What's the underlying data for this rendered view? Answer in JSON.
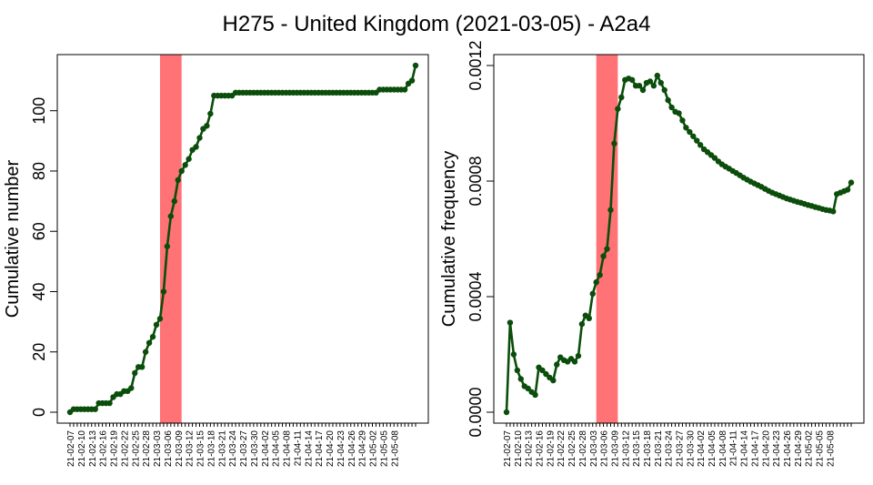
{
  "title": "H275 - United Kingdom (2021-03-05) - A2a4",
  "colors": {
    "line": "#0b4d0b",
    "highlight": "#ff7276",
    "axis": "#000000"
  },
  "chart_data": [
    {
      "type": "line",
      "title": "",
      "xlabel": "",
      "ylabel": "Cumulative number",
      "ylim": [
        0,
        115
      ],
      "yticks": [
        0,
        20,
        40,
        60,
        80,
        100
      ],
      "ytick_labels": [
        "0",
        "20",
        "40",
        "60",
        "80",
        "100"
      ],
      "highlight_range": [
        25,
        31
      ],
      "x_tick_labels": [
        "21-02-07",
        "21-02-10",
        "21-02-13",
        "21-02-16",
        "21-02-19",
        "21-02-22",
        "21-02-25",
        "21-02-28",
        "21-03-03",
        "21-03-06",
        "21-03-09",
        "21-03-12",
        "21-03-15",
        "21-03-18",
        "21-03-21",
        "21-03-24",
        "21-03-27",
        "21-03-30",
        "21-04-02",
        "21-04-05",
        "21-04-08",
        "21-04-11",
        "21-04-14",
        "21-04-17",
        "21-04-20",
        "21-04-23",
        "21-04-26",
        "21-04-29",
        "21-05-02",
        "21-05-05",
        "21-05-08"
      ],
      "values": [
        0,
        1,
        1,
        1,
        1,
        1,
        1,
        1,
        3,
        3,
        3,
        3,
        5,
        6,
        6,
        7,
        7,
        8,
        13,
        15,
        15,
        20,
        23,
        25,
        29,
        31,
        40,
        55,
        65,
        70,
        77,
        80,
        82,
        84,
        87,
        88,
        91,
        94,
        95,
        99,
        105,
        105,
        105,
        105,
        105,
        105,
        106,
        106,
        106,
        106,
        106,
        106,
        106,
        106,
        106,
        106,
        106,
        106,
        106,
        106,
        106,
        106,
        106,
        106,
        106,
        106,
        106,
        106,
        106,
        106,
        106,
        106,
        106,
        106,
        106,
        106,
        106,
        106,
        106,
        106,
        106,
        106,
        106,
        106,
        106,
        106,
        107,
        107,
        107,
        107,
        107,
        107,
        107,
        107,
        109,
        110,
        115
      ]
    },
    {
      "type": "line",
      "title": "",
      "xlabel": "",
      "ylabel": "Cumulative frequency",
      "ylim": [
        0,
        0.0012
      ],
      "yticks": [
        0,
        0.0004,
        0.0008,
        0.0012
      ],
      "ytick_labels": [
        "0.0000",
        "0.0004",
        "0.0008",
        "0.0012"
      ],
      "highlight_range": [
        25,
        31
      ],
      "x_tick_labels": [
        "21-02-07",
        "21-02-10",
        "21-02-13",
        "21-02-16",
        "21-02-19",
        "21-02-22",
        "21-02-25",
        "21-02-28",
        "21-03-03",
        "21-03-06",
        "21-03-09",
        "21-03-12",
        "21-03-15",
        "21-03-18",
        "21-03-21",
        "21-03-24",
        "21-03-27",
        "21-03-30",
        "21-04-02",
        "21-04-05",
        "21-04-08",
        "21-04-11",
        "21-04-14",
        "21-04-17",
        "21-04-20",
        "21-04-23",
        "21-04-26",
        "21-04-29",
        "21-05-02",
        "21-05-05",
        "21-05-08"
      ],
      "values": [
        0.0,
        0.00031,
        0.0002,
        0.000145,
        0.000115,
        9e-05,
        8.2e-05,
        7e-05,
        6e-05,
        0.000155,
        0.000145,
        0.000132,
        0.00012,
        0.00011,
        0.000165,
        0.00019,
        0.00018,
        0.000175,
        0.000185,
        0.000175,
        0.000195,
        0.000305,
        0.000335,
        0.000325,
        0.00041,
        0.00045,
        0.000475,
        0.00054,
        0.000565,
        0.0007,
        0.00093,
        0.00105,
        0.00109,
        0.00115,
        0.001155,
        0.00115,
        0.00113,
        0.00113,
        0.001115,
        0.00114,
        0.001145,
        0.00113,
        0.001165,
        0.00114,
        0.001115,
        0.00108,
        0.001055,
        0.00104,
        0.001035,
        0.00101,
        0.000985,
        0.00097,
        0.000955,
        0.00094,
        0.000925,
        0.00091,
        0.0009,
        0.00089,
        0.00088,
        0.000868,
        0.000858,
        0.00085,
        0.000843,
        0.000835,
        0.000828,
        0.00082,
        0.000812,
        0.000805,
        0.000798,
        0.000792,
        0.000786,
        0.00078,
        0.000773,
        0.000766,
        0.00076,
        0.000755,
        0.00075,
        0.000745,
        0.00074,
        0.000736,
        0.000732,
        0.000728,
        0.000725,
        0.000721,
        0.000717,
        0.000714,
        0.00071,
        0.000707,
        0.000703,
        0.0007,
        0.000698,
        0.000695,
        0.000755,
        0.00076,
        0.000765,
        0.00077,
        0.000795
      ]
    }
  ]
}
